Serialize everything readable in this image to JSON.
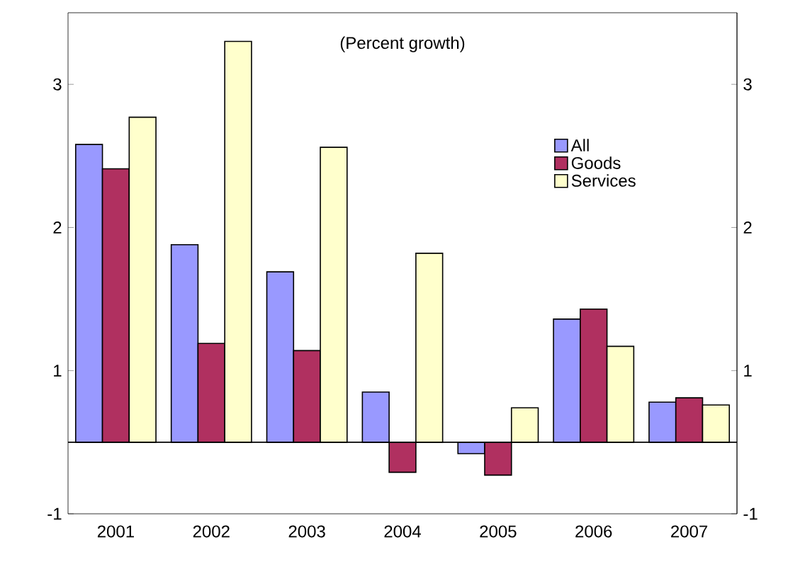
{
  "chart_data": {
    "type": "bar",
    "title": "(Percent growth)",
    "categories": [
      "2001",
      "2002",
      "2003",
      "2004",
      "2005",
      "2006",
      "2007"
    ],
    "series": [
      {
        "name": "All",
        "color": "#9999ff",
        "values": [
          2.08,
          1.38,
          1.19,
          0.35,
          -0.08,
          0.86,
          0.28
        ]
      },
      {
        "name": "Goods",
        "color": "#b03060",
        "values": [
          1.91,
          0.69,
          0.64,
          -0.21,
          -0.23,
          0.93,
          0.31
        ]
      },
      {
        "name": "Services",
        "color": "#ffffcc",
        "values": [
          2.27,
          2.8,
          2.06,
          1.32,
          0.24,
          0.67,
          0.26
        ]
      }
    ],
    "ylim": [
      -0.5,
      3.0
    ],
    "yticks": [
      {
        "value": 2.5,
        "label": "3"
      },
      {
        "value": 1.5,
        "label": "2"
      },
      {
        "value": 0.5,
        "label": "1"
      },
      {
        "value": -0.5,
        "label": "-1"
      }
    ],
    "y2lim": [
      -0.5,
      3.0
    ],
    "y2ticks": [
      {
        "value": 2.5,
        "label": "3"
      },
      {
        "value": 1.5,
        "label": "2"
      },
      {
        "value": 0.5,
        "label": "1"
      },
      {
        "value": -0.5,
        "label": "-1"
      }
    ],
    "legend": "top right",
    "grid": false
  }
}
